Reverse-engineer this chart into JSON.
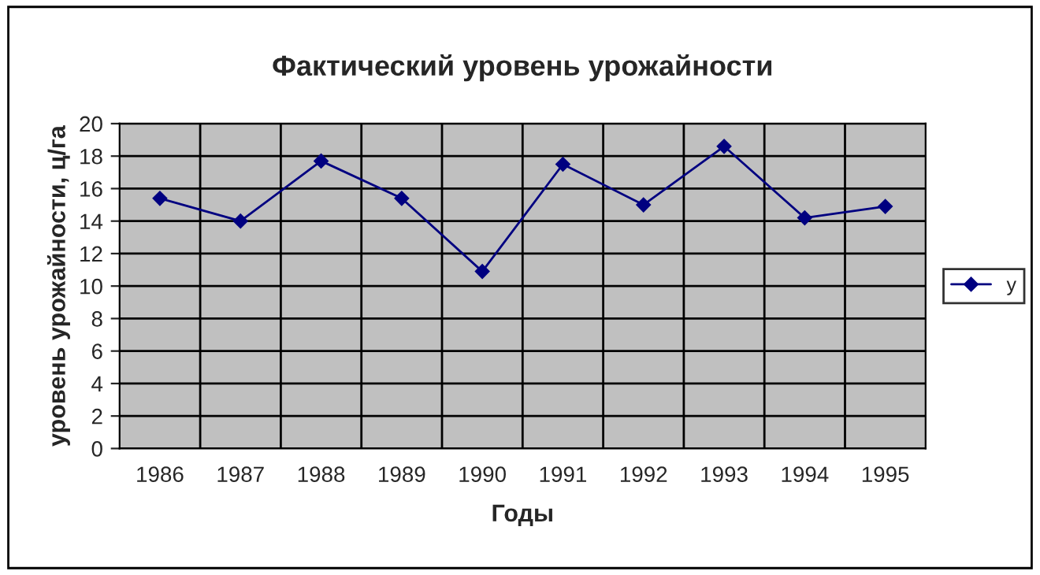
{
  "chart_data": {
    "type": "line",
    "title": "Фактический уровень урожайности",
    "xlabel": "Годы",
    "ylabel": "уровень урожайности, ц/га",
    "categories": [
      "1986",
      "1987",
      "1988",
      "1989",
      "1990",
      "1991",
      "1992",
      "1993",
      "1994",
      "1995"
    ],
    "series": [
      {
        "name": "y",
        "color": "#000080",
        "values": [
          15.4,
          14.0,
          17.7,
          15.4,
          10.9,
          17.5,
          15.0,
          18.6,
          14.2,
          14.9
        ]
      }
    ],
    "ylim": [
      0,
      20
    ],
    "yticks": [
      0,
      2,
      4,
      6,
      8,
      10,
      12,
      14,
      16,
      18,
      20
    ],
    "grid": true,
    "legend": "right",
    "marker": "diamond",
    "line_style": "solid"
  }
}
